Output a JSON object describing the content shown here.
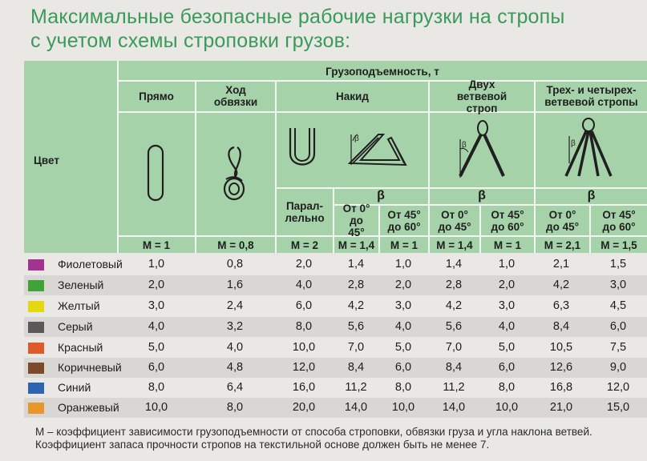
{
  "title": {
    "line1": "Максимальные безопасные рабочие нагрузки на стропы",
    "line2": "с учетом схемы строповки грузов:"
  },
  "header": {
    "color": "Цвет",
    "capacity": "Грузоподъемность, т",
    "direct": "Прямо",
    "choke": "Ход обвязки",
    "basket": "Накид",
    "two_leg": "Двух ветвевой строп",
    "three_four_leg": "Трех- и четырех- ветвевой стропы",
    "parallel": "Парал- лельно",
    "beta": "β",
    "angle_0_45": "От 0° до 45°",
    "angle_45_60": "От 45° до 60°",
    "m_values": [
      "М = 1",
      "М = 0,8",
      "М = 2",
      "М = 1,4",
      "М = 1",
      "М = 1,4",
      "М = 1",
      "М = 2,1",
      "М = 1,5"
    ]
  },
  "rows": [
    {
      "name": "Фиолетовый",
      "color": "#a3338f",
      "values": [
        "1,0",
        "0,8",
        "2,0",
        "1,4",
        "1,0",
        "1,4",
        "1,0",
        "2,1",
        "1,5"
      ]
    },
    {
      "name": "Зеленый",
      "color": "#3fa33a",
      "values": [
        "2,0",
        "1,6",
        "4,0",
        "2,8",
        "2,0",
        "2,8",
        "2,0",
        "4,2",
        "3,0"
      ]
    },
    {
      "name": "Желтый",
      "color": "#e5d80e",
      "values": [
        "3,0",
        "2,4",
        "6,0",
        "4,2",
        "3,0",
        "4,2",
        "3,0",
        "6,3",
        "4,5"
      ]
    },
    {
      "name": "Серый",
      "color": "#5a5858",
      "values": [
        "4,0",
        "3,2",
        "8,0",
        "5,6",
        "4,0",
        "5,6",
        "4,0",
        "8,4",
        "6,0"
      ]
    },
    {
      "name": "Красный",
      "color": "#df5a2b",
      "values": [
        "5,0",
        "4,0",
        "10,0",
        "7,0",
        "5,0",
        "7,0",
        "5,0",
        "10,5",
        "7,5"
      ]
    },
    {
      "name": "Коричневый",
      "color": "#7a4a2a",
      "values": [
        "6,0",
        "4,8",
        "12,0",
        "8,4",
        "6,0",
        "8,4",
        "6,0",
        "12,6",
        "9,0"
      ]
    },
    {
      "name": "Синий",
      "color": "#2d63b0",
      "values": [
        "8,0",
        "6,4",
        "16,0",
        "11,2",
        "8,0",
        "11,2",
        "8,0",
        "16,8",
        "12,0"
      ]
    },
    {
      "name": "Оранжевый",
      "color": "#e89628",
      "values": [
        "10,0",
        "8,0",
        "20,0",
        "14,0",
        "10,0",
        "14,0",
        "10,0",
        "21,0",
        "15,0"
      ]
    }
  ],
  "footnote": {
    "line1": "М – коэффициент зависимости грузоподъемности от способа строповки, обвязки груза и угла наклона ветвей.",
    "line2": "Коэффициент запаса прочности стропов на текстильной основе должен быть не менее 7."
  }
}
